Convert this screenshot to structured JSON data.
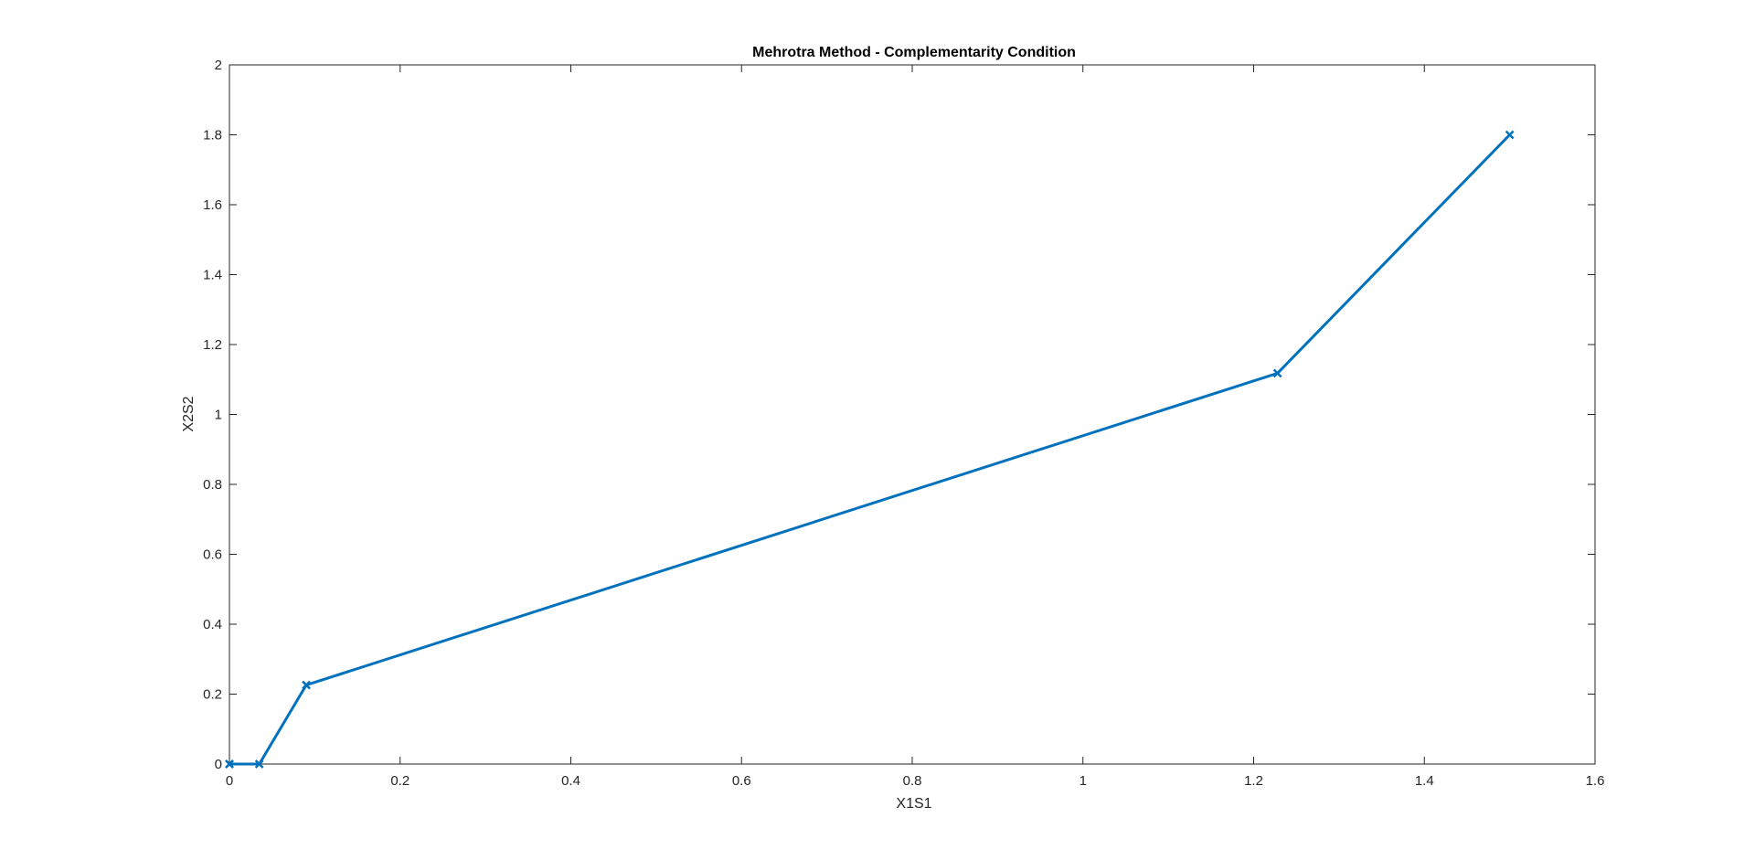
{
  "chart_data": {
    "type": "line",
    "title": "Mehrotra Method - Complementarity Condition",
    "xlabel": "X1S1",
    "ylabel": "X2S2",
    "xlim": [
      0,
      1.6
    ],
    "ylim": [
      0,
      2
    ],
    "x_ticks": [
      "0",
      "0.2",
      "0.4",
      "0.6",
      "0.8",
      "1",
      "1.2",
      "1.4",
      "1.6"
    ],
    "y_ticks": [
      "0",
      "0.2",
      "0.4",
      "0.6",
      "0.8",
      "1",
      "1.2",
      "1.4",
      "1.6",
      "1.8",
      "2"
    ],
    "grid": false,
    "legend": "none",
    "marker": "x",
    "series": [
      {
        "color": "#0072BD",
        "x": [
          1.5,
          1.228,
          0.09,
          0.035,
          0.0,
          0.0
        ],
        "y": [
          1.8,
          1.118,
          0.226,
          0.0,
          0.0,
          0.0
        ]
      }
    ]
  }
}
